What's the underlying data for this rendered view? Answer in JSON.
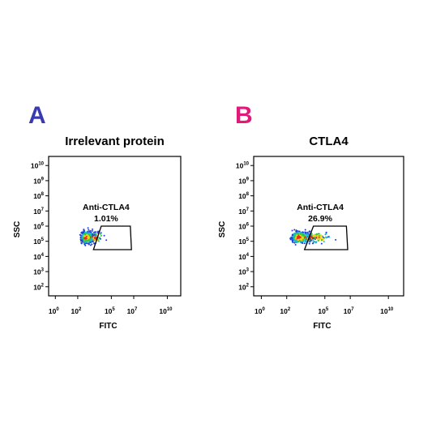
{
  "colors": {
    "panel_a_letter": "#3a3ab0",
    "panel_b_letter": "#e0197a",
    "axis": "#000000",
    "gate": "#000000"
  },
  "chart_data": [
    {
      "type": "scatter",
      "panel_letter": "A",
      "title": "Irrelevant protein",
      "xlabel": "FITC",
      "ylabel": "SSC",
      "x_scale": "log",
      "y_scale": "log",
      "x_ticks": [
        {
          "base": "10",
          "exp": "0"
        },
        {
          "base": "10",
          "exp": "2"
        },
        {
          "base": "10",
          "exp": "5"
        },
        {
          "base": "10",
          "exp": "7"
        },
        {
          "base": "10",
          "exp": "10"
        }
      ],
      "y_ticks": [
        {
          "base": "10",
          "exp": "10"
        },
        {
          "base": "10",
          "exp": "9"
        },
        {
          "base": "10",
          "exp": "8"
        },
        {
          "base": "10",
          "exp": "7"
        },
        {
          "base": "10",
          "exp": "6"
        },
        {
          "base": "10",
          "exp": "5"
        },
        {
          "base": "10",
          "exp": "4"
        },
        {
          "base": "10",
          "exp": "3"
        },
        {
          "base": "10",
          "exp": "2"
        }
      ],
      "gate": {
        "name": "Anti-CTLA4",
        "percent": "1.01%",
        "vertices_log10": [
          [
            4.1,
            6.0
          ],
          [
            6.7,
            6.0
          ],
          [
            6.8,
            4.45
          ],
          [
            3.4,
            4.45
          ]
        ]
      },
      "population": {
        "center_log10": [
          2.7,
          5.25
        ],
        "spread_log10": [
          0.35,
          0.3
        ],
        "tail_max_log10": 3.8,
        "events_in_gate_fraction": 0.0101
      },
      "grid": false
    },
    {
      "type": "scatter",
      "panel_letter": "B",
      "title": "CTLA4",
      "xlabel": "FITC",
      "ylabel": "SSC",
      "x_scale": "log",
      "y_scale": "log",
      "x_ticks": [
        {
          "base": "10",
          "exp": "0"
        },
        {
          "base": "10",
          "exp": "2"
        },
        {
          "base": "10",
          "exp": "5"
        },
        {
          "base": "10",
          "exp": "7"
        },
        {
          "base": "10",
          "exp": "10"
        }
      ],
      "y_ticks": [
        {
          "base": "10",
          "exp": "10"
        },
        {
          "base": "10",
          "exp": "9"
        },
        {
          "base": "10",
          "exp": "8"
        },
        {
          "base": "10",
          "exp": "7"
        },
        {
          "base": "10",
          "exp": "6"
        },
        {
          "base": "10",
          "exp": "5"
        },
        {
          "base": "10",
          "exp": "4"
        },
        {
          "base": "10",
          "exp": "3"
        },
        {
          "base": "10",
          "exp": "2"
        }
      ],
      "gate": {
        "name": "Anti-CTLA4",
        "percent": "26.9%",
        "vertices_log10": [
          [
            4.1,
            6.0
          ],
          [
            6.7,
            6.0
          ],
          [
            6.8,
            4.45
          ],
          [
            3.4,
            4.45
          ]
        ]
      },
      "population": {
        "center_log10": [
          2.9,
          5.25
        ],
        "spread_log10": [
          0.45,
          0.3
        ],
        "tail_max_log10": 4.6,
        "events_in_gate_fraction": 0.269
      },
      "grid": false
    }
  ]
}
